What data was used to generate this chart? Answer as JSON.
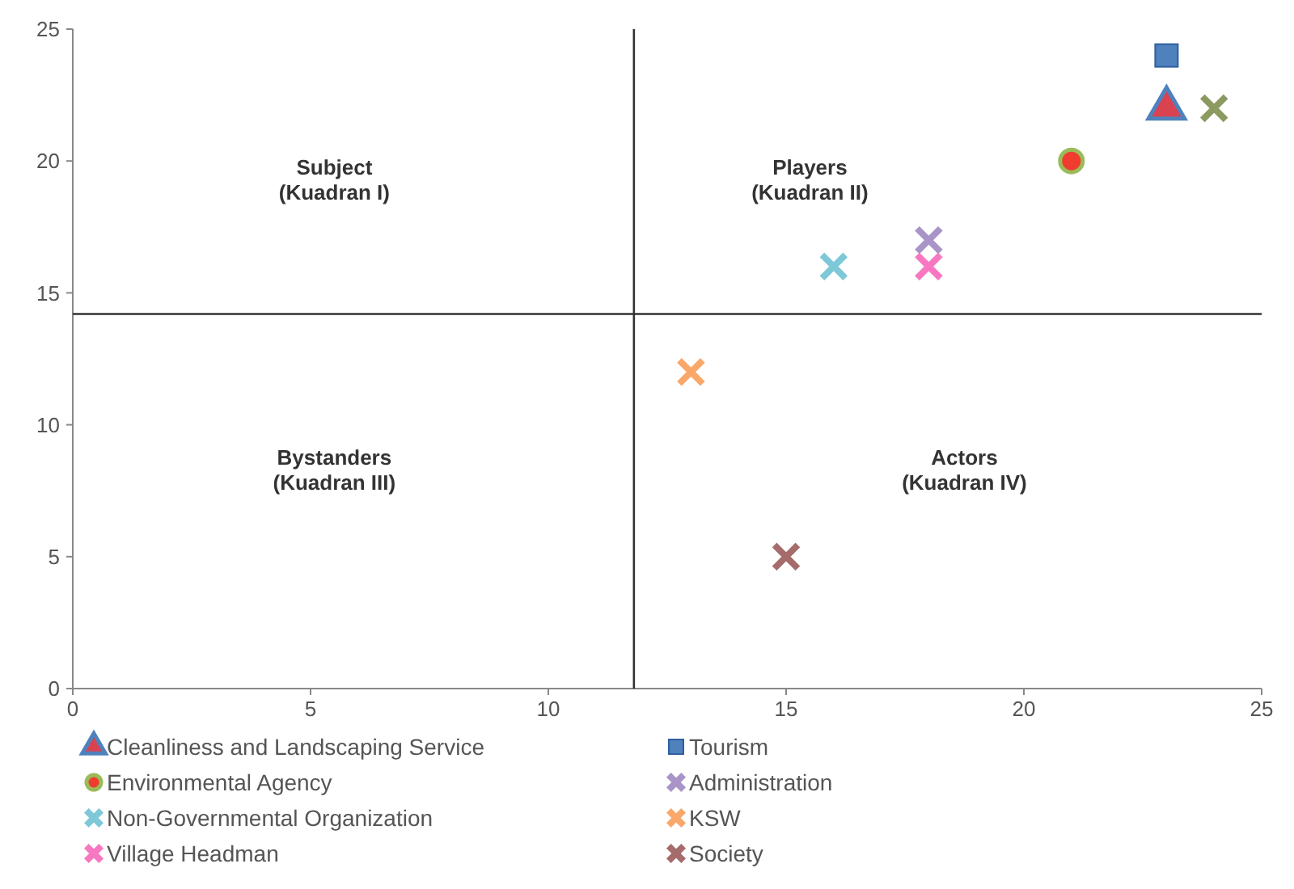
{
  "chart_data": {
    "type": "scatter",
    "xlim": [
      0,
      25
    ],
    "ylim": [
      0,
      25
    ],
    "xticks": [
      0,
      5,
      10,
      15,
      20,
      25
    ],
    "yticks": [
      0,
      5,
      10,
      15,
      20,
      25
    ],
    "grid": false,
    "legend": "bottom",
    "series": [
      {
        "name": "Cleanliness and Landscaping Service",
        "color": "#d9434f",
        "marker": "triangle",
        "x": [
          23
        ],
        "values": [
          22
        ]
      },
      {
        "name": "Tourism",
        "color": "#4f81bd",
        "marker": "square",
        "x": [
          23
        ],
        "values": [
          24
        ]
      },
      {
        "name": "Environmental Agency",
        "color": "#f03c2e",
        "marker": "circle",
        "x": [
          21
        ],
        "values": [
          20
        ]
      },
      {
        "name": "Administration",
        "color": "#a994c8",
        "marker": "cross",
        "x": [
          18
        ],
        "values": [
          17
        ]
      },
      {
        "name": "Non-Governmental Organization",
        "color": "#7ec8d8",
        "marker": "cross",
        "x": [
          16
        ],
        "values": [
          16
        ]
      },
      {
        "name": "KSW",
        "color": "#f9a86a",
        "marker": "cross",
        "x": [
          13
        ],
        "values": [
          12
        ]
      },
      {
        "name": "Village Headman",
        "color": "#f778c0",
        "marker": "cross",
        "x": [
          18
        ],
        "values": [
          16
        ]
      },
      {
        "name": "Society",
        "color": "#a66b6b",
        "marker": "cross",
        "x": [
          15
        ],
        "values": [
          5
        ]
      },
      {
        "color": "#8a9a60",
        "marker": "cross",
        "x": [
          24
        ],
        "values": [
          22
        ]
      }
    ],
    "ref_lines": [
      {
        "axis": "x",
        "value": 11.8
      },
      {
        "axis": "y",
        "value": 14.2
      }
    ],
    "annotations": [
      "Subject\n(Kuadran I)",
      "Players\n(Kuadran II)",
      "Bystanders\n(Kuadran III)",
      "Actors\n(Kuadran IV)"
    ]
  }
}
